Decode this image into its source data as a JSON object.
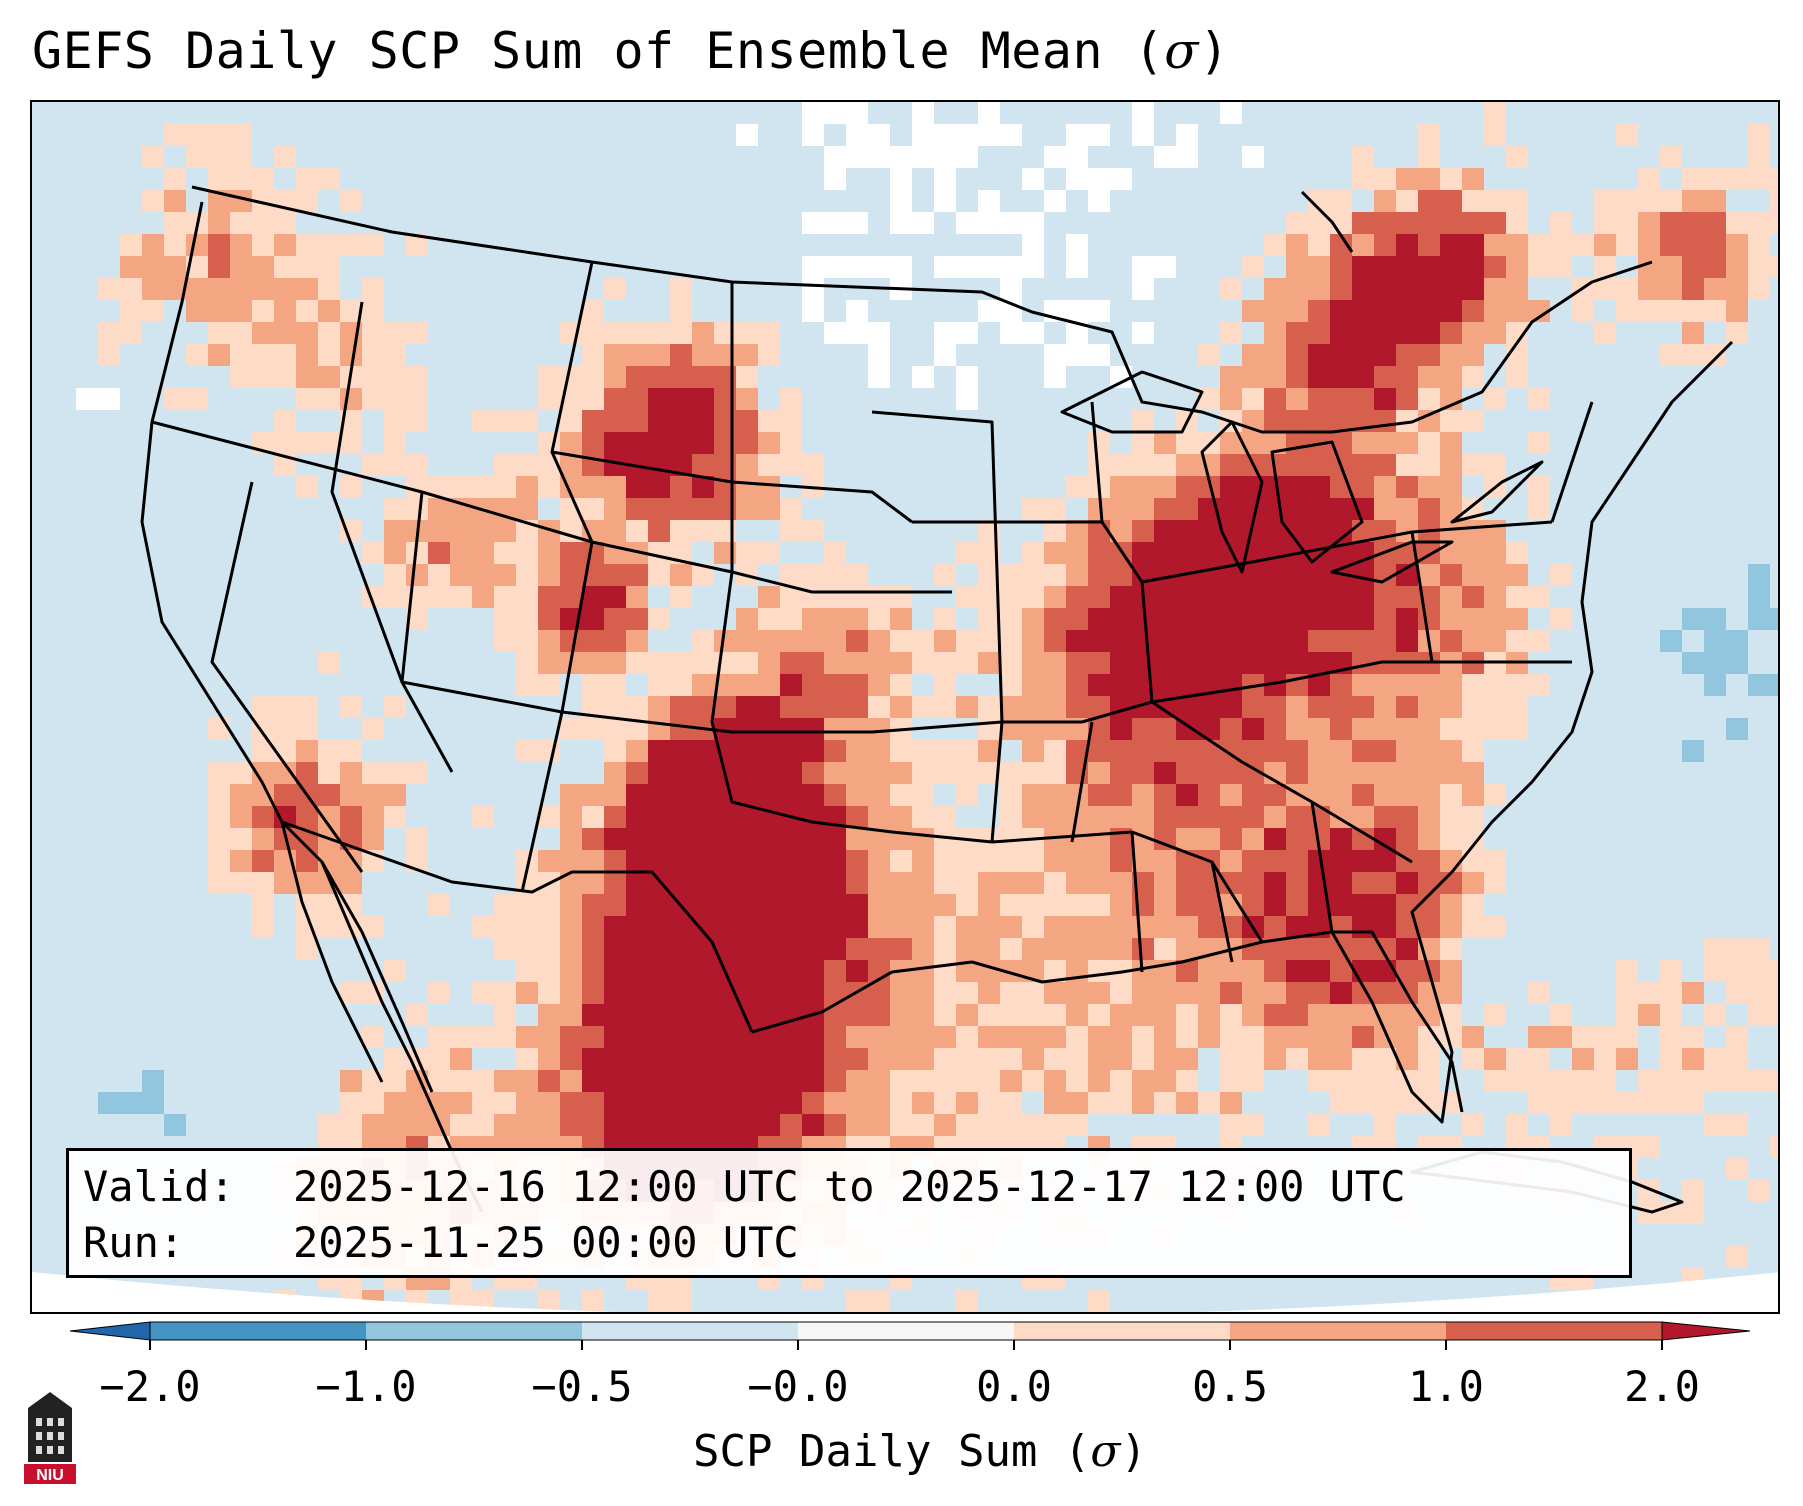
{
  "title": {
    "prefix": "GEFS Daily SCP Sum of Ensemble Mean (",
    "symbol": "σ",
    "suffix": ")"
  },
  "info": {
    "valid_label": "Valid:",
    "valid_value": "2025-12-16 12:00 UTC to 2025-12-17 12:00 UTC",
    "run_label": "Run:",
    "run_value": "2025-11-25 00:00 UTC"
  },
  "colorbar": {
    "ticks": [
      "−2.0",
      "−1.0",
      "−0.5",
      "−0.0",
      "0.0",
      "0.5",
      "1.0",
      "2.0"
    ],
    "bin_colors": [
      "#2166ac",
      "#4393c3",
      "#92c5de",
      "#d1e5f0",
      "#f7f7f7",
      "#fddbc7",
      "#f4a582",
      "#d6604d",
      "#b2182b"
    ],
    "label_prefix": "SCP Daily Sum (",
    "label_symbol": "σ",
    "label_suffix": ")"
  },
  "map": {
    "background_color": "#d1e5f0",
    "border_color": "#000000",
    "regions_high": [
      "Oklahoma/Texas panhandle",
      "West Texas",
      "New Mexico",
      "Montana",
      "Wyoming",
      "Illinois/Indiana",
      "Michigan",
      "Ontario"
    ],
    "regions_moderate": [
      "Tennessee Valley",
      "Georgia",
      "Pennsylvania",
      "California Central Valley",
      "Kansas"
    ]
  },
  "logo": {
    "text": "NIU",
    "icon": "niu-building-logo-icon"
  }
}
